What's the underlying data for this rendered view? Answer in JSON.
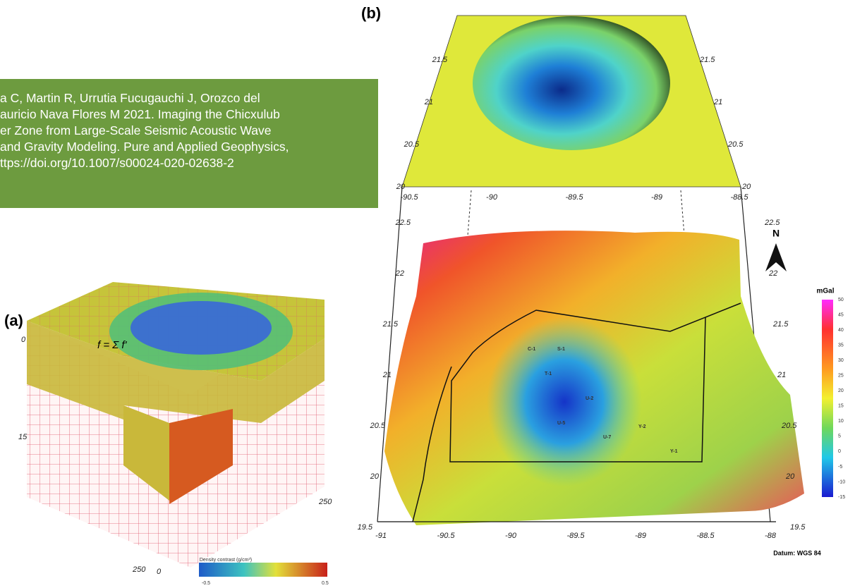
{
  "caption": {
    "lines": [
      "a C, Martin R, Urrutia Fucugauchi J, Orozco del",
      "auricio Nava Flores M 2021. Imaging the Chicxulub",
      "er Zone from Large-Scale Seismic Acoustic Wave",
      "and Gravity Modeling. Pure and Applied Geophysics,",
      "ttps://doi.org/10.1007/s00024-020-02638-2"
    ]
  },
  "panel_a": {
    "label": "(a)",
    "axis_labels": [
      "0",
      "15",
      "250",
      "250",
      "0"
    ],
    "formula": "f = Σ f'",
    "colorbar_title": "Density contrast (g/cm³)",
    "colorbar_ends": [
      "-0.5",
      "0.5"
    ]
  },
  "panel_b": {
    "label": "(b)",
    "north": "N",
    "datum": "Datum: WGS 84",
    "top_x_ticks": [
      "-90.5",
      "-90",
      "-89.5",
      "-89",
      "-88.5"
    ],
    "top_y_ticks": [
      "20",
      "20.5",
      "21",
      "21.5"
    ],
    "bottom_x_ticks": [
      "-91",
      "-90.5",
      "-90",
      "-89.5",
      "-89",
      "-88.5",
      "-88"
    ],
    "bottom_y_ticks": [
      "19.5",
      "20",
      "20.5",
      "21",
      "21.5",
      "22",
      "22.5"
    ],
    "stations": [
      "C-1",
      "S-1",
      "T-1",
      "U-2",
      "U-5",
      "U-7",
      "Y-2",
      "Y-1"
    ],
    "colorbar_title": "mGal",
    "colorbar_ticks": [
      "50",
      "45",
      "40",
      "35",
      "30",
      "25",
      "20",
      "15",
      "10",
      "5",
      "0",
      "-5",
      "-10",
      "-15"
    ]
  }
}
